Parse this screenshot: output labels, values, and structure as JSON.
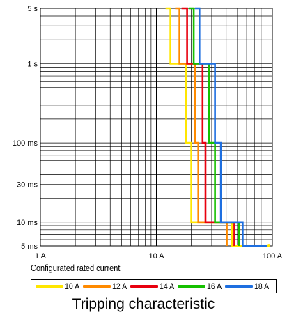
{
  "chart_data": {
    "type": "line",
    "title": "Tripping characteristic",
    "x_axis": {
      "scale": "log",
      "range": [
        1,
        100
      ],
      "unit": "A",
      "tick_labels": [
        {
          "value": 1,
          "label": "1 A"
        },
        {
          "value": 10,
          "label": "10 A"
        },
        {
          "value": 100,
          "label": "100 A"
        }
      ]
    },
    "y_axis": {
      "scale": "log",
      "range": [
        0.005,
        5
      ],
      "unit": "s",
      "tick_labels": [
        {
          "value": 5,
          "label": "5 s"
        },
        {
          "value": 1,
          "label": "1 s"
        },
        {
          "value": 0.1,
          "label": "100 ms"
        },
        {
          "value": 0.03,
          "label": "30 ms"
        },
        {
          "value": 0.01,
          "label": "10 ms"
        },
        {
          "value": 0.005,
          "label": "5 ms"
        }
      ]
    },
    "grid": true,
    "legend": {
      "title": "Configurated rated current",
      "placement": "bottom"
    },
    "series": [
      {
        "name": "10 A",
        "color": "#ffe600",
        "points": [
          [
            12,
            5
          ],
          [
            13.2,
            5
          ],
          [
            13.2,
            1
          ],
          [
            18,
            1
          ],
          [
            18,
            0.1
          ],
          [
            20,
            0.1
          ],
          [
            20,
            0.01
          ],
          [
            45,
            0.01
          ],
          [
            45,
            0.005
          ],
          [
            93,
            0.005
          ],
          [
            93,
            0.0053
          ]
        ]
      },
      {
        "name": "12 A",
        "color": "#ff8a00",
        "points": [
          [
            14.5,
            5
          ],
          [
            15.8,
            5
          ],
          [
            15.8,
            1
          ],
          [
            21.5,
            1
          ],
          [
            21.5,
            0.1
          ],
          [
            23,
            0.1
          ],
          [
            23,
            0.01
          ],
          [
            40.5,
            0.01
          ],
          [
            40.5,
            0.005
          ]
        ]
      },
      {
        "name": "14 A",
        "color": "#e8000e",
        "points": [
          [
            16.5,
            5
          ],
          [
            18.4,
            5
          ],
          [
            18.4,
            1
          ],
          [
            25,
            1
          ],
          [
            25,
            0.1
          ],
          [
            26.5,
            0.1
          ],
          [
            26.5,
            0.01
          ],
          [
            47,
            0.01
          ],
          [
            47,
            0.005
          ]
        ]
      },
      {
        "name": "16 A",
        "color": "#16c000",
        "points": [
          [
            19,
            5
          ],
          [
            21,
            5
          ],
          [
            21,
            1
          ],
          [
            28.5,
            1
          ],
          [
            28.5,
            0.1
          ],
          [
            32,
            0.1
          ],
          [
            32,
            0.01
          ],
          [
            51.5,
            0.01
          ],
          [
            51.5,
            0.005
          ]
        ]
      },
      {
        "name": "18 A",
        "color": "#1e6fe0",
        "points": [
          [
            21.5,
            5
          ],
          [
            23.5,
            5
          ],
          [
            23.5,
            1
          ],
          [
            32,
            1
          ],
          [
            32,
            0.1
          ],
          [
            36,
            0.1
          ],
          [
            36,
            0.01
          ],
          [
            55.5,
            0.01
          ],
          [
            55.5,
            0.005
          ],
          [
            90,
            0.005
          ]
        ]
      }
    ]
  }
}
